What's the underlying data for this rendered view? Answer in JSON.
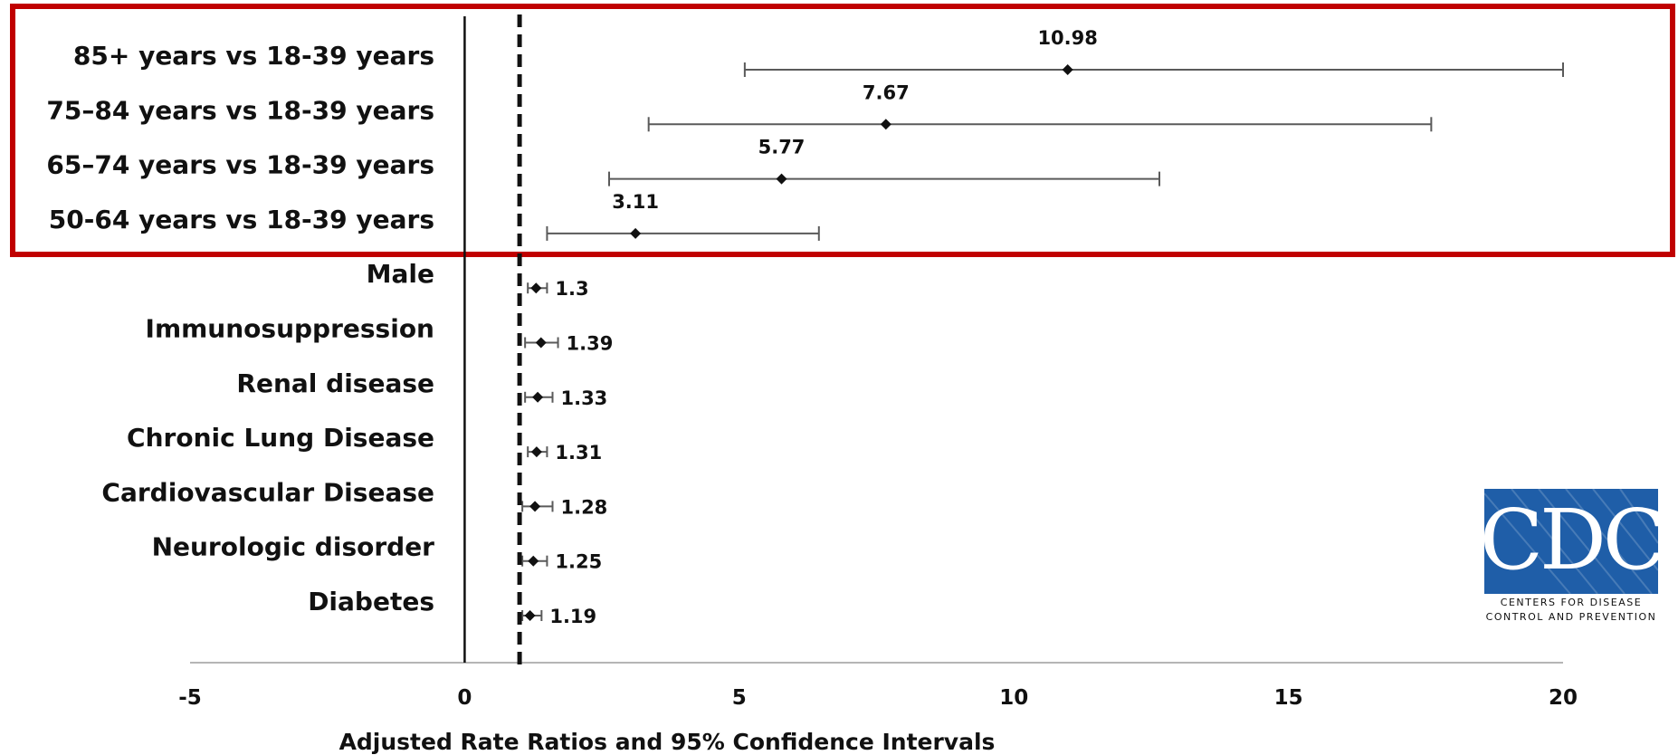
{
  "chart_data": {
    "type": "forest",
    "xlabel": "Adjusted Rate Ratios and 95% Confidence Intervals",
    "xlim": [
      -5,
      20
    ],
    "xticks": [
      -5,
      0,
      5,
      10,
      15,
      20
    ],
    "reference_line": 1,
    "zero_line": 0,
    "rows": [
      {
        "label": "85+ years vs 18-39 years",
        "value": 10.98,
        "value_label": "10.98",
        "lower": 5.1,
        "upper": 20.0,
        "highlighted": true
      },
      {
        "label": "75–84 years vs 18-39 years",
        "value": 7.67,
        "value_label": "7.67",
        "lower": 3.35,
        "upper": 17.6,
        "highlighted": true
      },
      {
        "label": "65–74 years vs 18-39 years",
        "value": 5.77,
        "value_label": "5.77",
        "lower": 2.63,
        "upper": 12.65,
        "highlighted": true
      },
      {
        "label": "50-64 years vs 18-39 years",
        "value": 3.11,
        "value_label": "3.11",
        "lower": 1.5,
        "upper": 6.45,
        "highlighted": true
      },
      {
        "label": "Male",
        "value": 1.3,
        "value_label": "1.3",
        "lower": 1.15,
        "upper": 1.5,
        "highlighted": false
      },
      {
        "label": "Immunosuppression",
        "value": 1.39,
        "value_label": "1.39",
        "lower": 1.1,
        "upper": 1.7,
        "highlighted": false
      },
      {
        "label": "Renal disease",
        "value": 1.33,
        "value_label": "1.33",
        "lower": 1.1,
        "upper": 1.6,
        "highlighted": false
      },
      {
        "label": "Chronic Lung Disease",
        "value": 1.31,
        "value_label": "1.31",
        "lower": 1.15,
        "upper": 1.5,
        "highlighted": false
      },
      {
        "label": "Cardiovascular Disease",
        "value": 1.28,
        "value_label": "1.28",
        "lower": 1.05,
        "upper": 1.6,
        "highlighted": false
      },
      {
        "label": "Neurologic disorder",
        "value": 1.25,
        "value_label": "1.25",
        "lower": 1.05,
        "upper": 1.5,
        "highlighted": false
      },
      {
        "label": "Diabetes",
        "value": 1.19,
        "value_label": "1.19",
        "lower": 1.05,
        "upper": 1.4,
        "highlighted": false
      }
    ]
  },
  "highlight_color": "#c00000",
  "logo": {
    "mark": "CDC",
    "line1": "Centers for Disease",
    "line2": "Control and Prevention",
    "color": "#1f5ea8"
  }
}
